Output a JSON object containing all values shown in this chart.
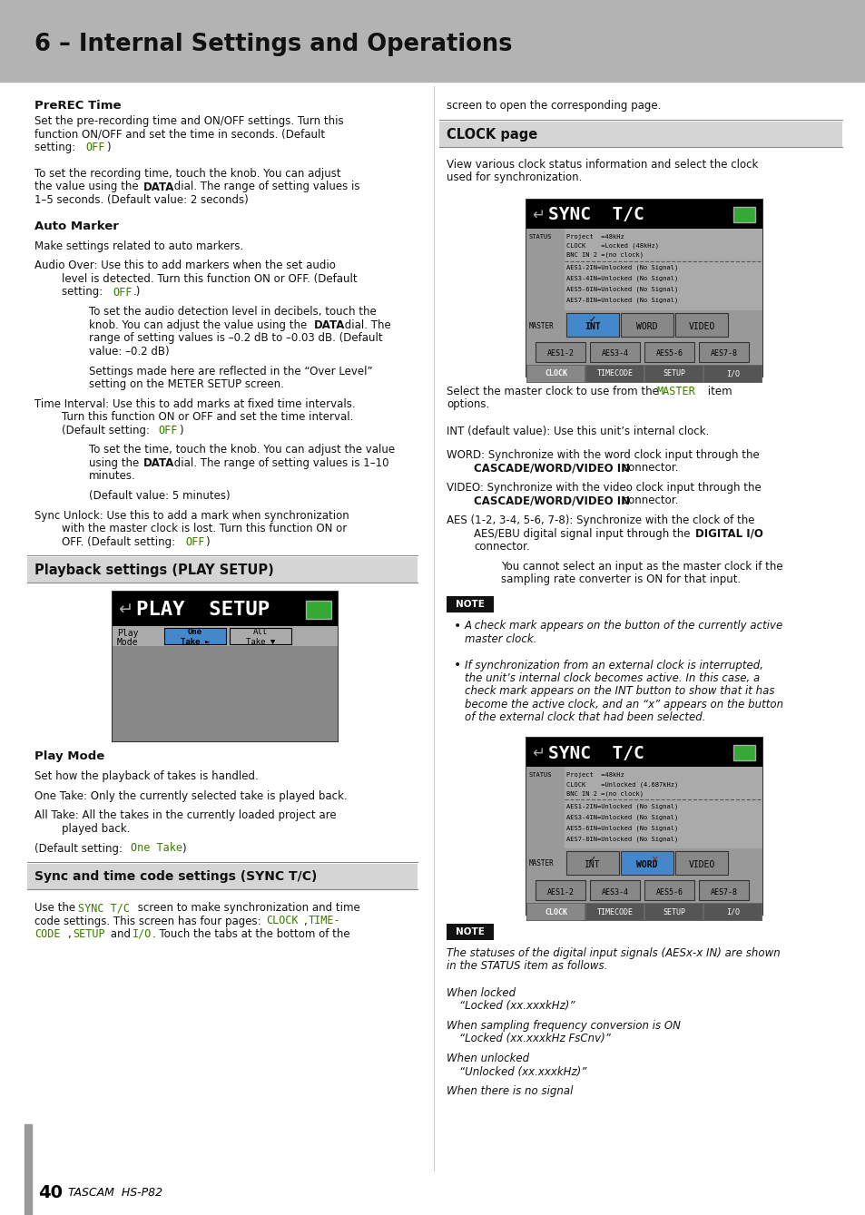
{
  "page_bg": "#ffffff",
  "header_bg": "#b3b3b3",
  "header_text": "6 – Internal Settings and Operations",
  "header_text_color": "#111111",
  "left_bar_color": "#999999",
  "footer_page": "40",
  "footer_brand": "TASCAM  HS-P82",
  "mono_color": "#3a7a00",
  "body_color": "#111111"
}
